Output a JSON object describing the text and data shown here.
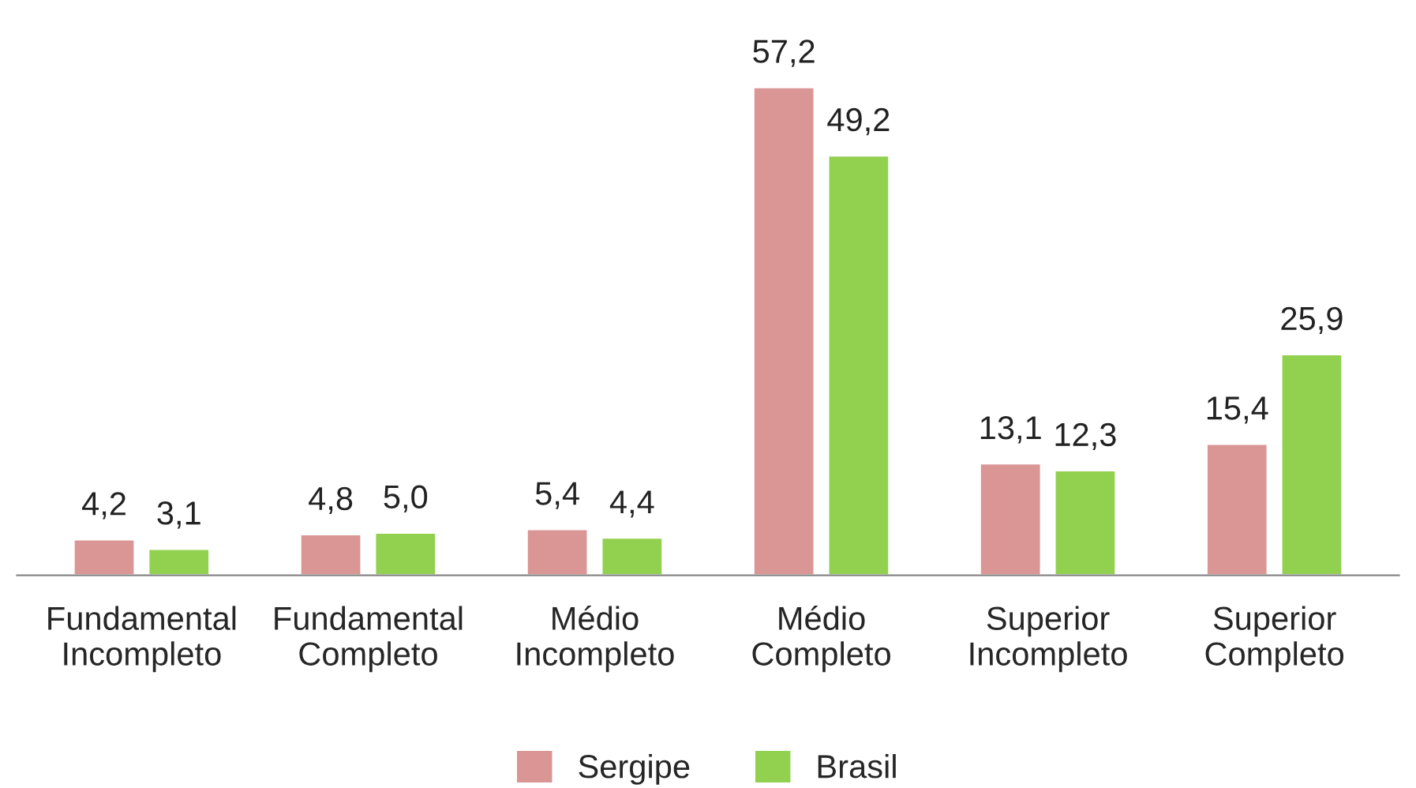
{
  "chart_data": {
    "type": "bar",
    "categories": [
      "Fundamental\nIncompleto",
      "Fundamental\nCompleto",
      "Médio\nIncompleto",
      "Médio\nCompleto",
      "Superior\nIncompleto",
      "Superior\nCompleto"
    ],
    "series": [
      {
        "name": "Sergipe",
        "color": "#d99694",
        "values": [
          4.2,
          4.8,
          5.4,
          57.2,
          13.1,
          15.4
        ],
        "value_labels": [
          "4,2",
          "4,8",
          "5,4",
          "57,2",
          "13,1",
          "15,4"
        ]
      },
      {
        "name": "Brasil",
        "color": "#92d050",
        "values": [
          3.1,
          5.0,
          4.4,
          49.2,
          12.3,
          25.9
        ],
        "value_labels": [
          "3,1",
          "5,0",
          "4,4",
          "49,2",
          "12,3",
          "25,9"
        ]
      }
    ],
    "legend": "bottom",
    "grid": false
  }
}
